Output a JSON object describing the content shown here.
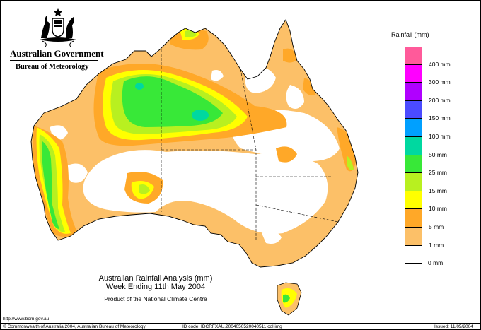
{
  "header": {
    "government": "Australian Government",
    "bureau": "Bureau of Meteorology"
  },
  "legend": {
    "title": "Rainfall (mm)",
    "items": [
      {
        "label": "",
        "color": "#ff5a9a"
      },
      {
        "label": "400 mm",
        "color": "#ff00ff"
      },
      {
        "label": "300 mm",
        "color": "#b000ff"
      },
      {
        "label": "200 mm",
        "color": "#4b4bff"
      },
      {
        "label": "150 mm",
        "color": "#00a0ff"
      },
      {
        "label": "100 mm",
        "color": "#00d8a0"
      },
      {
        "label": "50 mm",
        "color": "#38e838"
      },
      {
        "label": "25 mm",
        "color": "#b8f020"
      },
      {
        "label": "15 mm",
        "color": "#ffff00"
      },
      {
        "label": "10 mm",
        "color": "#ffa828"
      },
      {
        "label": "5 mm",
        "color": "#fcc068"
      },
      {
        "label": "1 mm",
        "color": "#ffffff"
      },
      {
        "label": "0 mm",
        "color": ""
      }
    ]
  },
  "caption": {
    "line1": "Australian Rainfall Analysis (mm)",
    "line2": "Week Ending 11th May 2004",
    "line3": "Product of the National Climate Centre"
  },
  "footer": {
    "url": "http://www.bom.gov.au",
    "copyright": "© Commonwealth of Australia 2004, Australian Bureau of Meteorology",
    "id_code": "ID code: IDCRFXAU.2004050520040511.col.img",
    "issued": "Issued: 11/05/2004"
  },
  "colors": {
    "light_orange": "#fcc068",
    "orange": "#ffa828",
    "yellow": "#ffff00",
    "lime": "#b8f020",
    "green": "#38e838",
    "teal": "#00d8a0"
  }
}
